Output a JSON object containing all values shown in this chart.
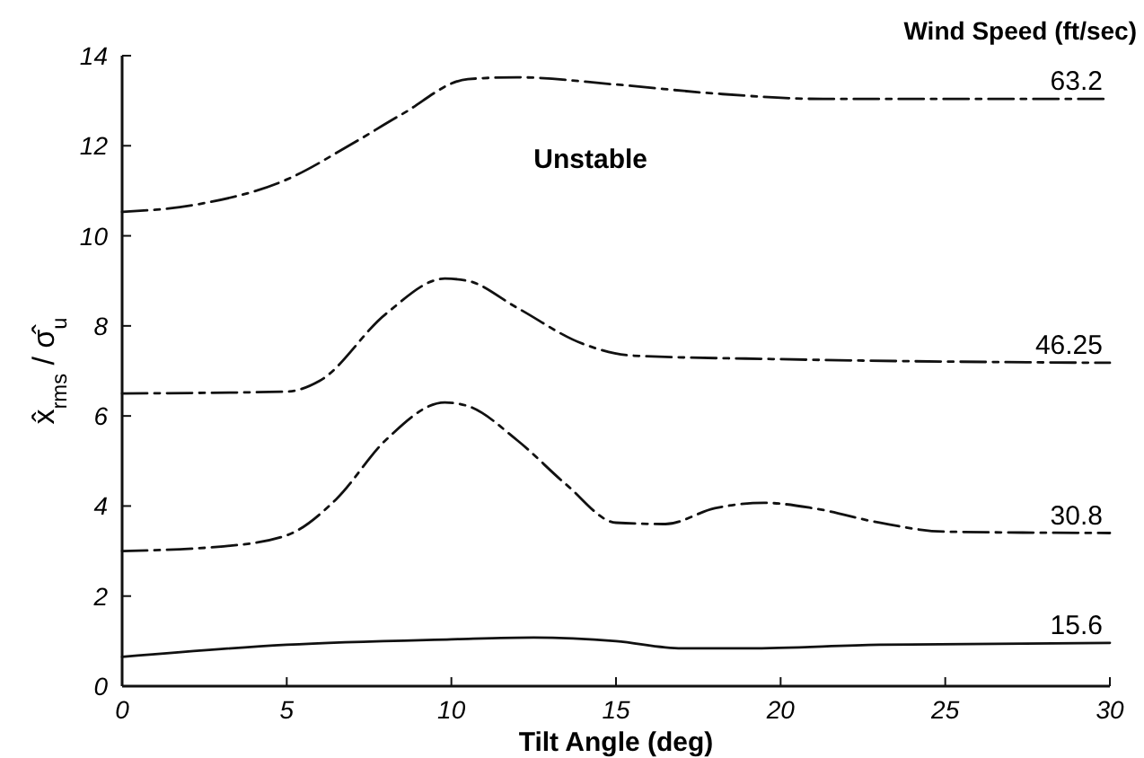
{
  "chart_data": {
    "type": "line",
    "xlabel": "Tilt Angle  (deg)",
    "ylabel": "x̂$_{rms}$ / σ̂$_{u}$",
    "legend_title": "Wind Speed  (ft/sec)",
    "annotations": [
      "Unstable"
    ],
    "xlim": [
      0,
      30
    ],
    "xticks": [
      0,
      5,
      10,
      15,
      20,
      25,
      30
    ],
    "ylim": [
      0,
      14
    ],
    "yticks": [
      0,
      2,
      4,
      6,
      8,
      10,
      12,
      14
    ],
    "grid": false,
    "series": [
      {
        "name": "63.2",
        "color": "#111111",
        "line_style": "dashed",
        "x": [
          0,
          2.3,
          5,
          7,
          8.5,
          10.5,
          12,
          15,
          18,
          21.3,
          30
        ],
        "values": [
          10.53,
          10.7,
          11.25,
          12.05,
          12.7,
          13.48,
          13.52,
          13.36,
          13.16,
          13.04,
          13.04
        ]
      },
      {
        "name": "46.25",
        "color": "#111111",
        "line_style": "dashed",
        "x": [
          0,
          5,
          6,
          8,
          9.8,
          10.5,
          12,
          14,
          15.5,
          20,
          30
        ],
        "values": [
          6.5,
          6.54,
          6.78,
          8.26,
          9.05,
          9.0,
          8.4,
          7.6,
          7.34,
          7.26,
          7.18
        ]
      },
      {
        "name": "30.8",
        "color": "#111111",
        "line_style": "dashed",
        "x": [
          0,
          3,
          5,
          6.5,
          8,
          9.8,
          10.5,
          12,
          13.5,
          15,
          16.5,
          18,
          19.5,
          21,
          23,
          25,
          30
        ],
        "values": [
          3.0,
          3.1,
          3.35,
          4.15,
          5.46,
          6.3,
          6.22,
          5.46,
          4.47,
          3.63,
          3.6,
          3.95,
          4.07,
          3.95,
          3.63,
          3.43,
          3.4
        ]
      },
      {
        "name": "15.6",
        "color": "#111111",
        "line_style": "solid",
        "x": [
          0,
          5,
          10,
          12.5,
          15,
          17,
          19,
          23,
          30
        ],
        "values": [
          0.65,
          0.92,
          1.04,
          1.08,
          1.0,
          0.84,
          0.84,
          0.92,
          0.96
        ]
      }
    ]
  }
}
